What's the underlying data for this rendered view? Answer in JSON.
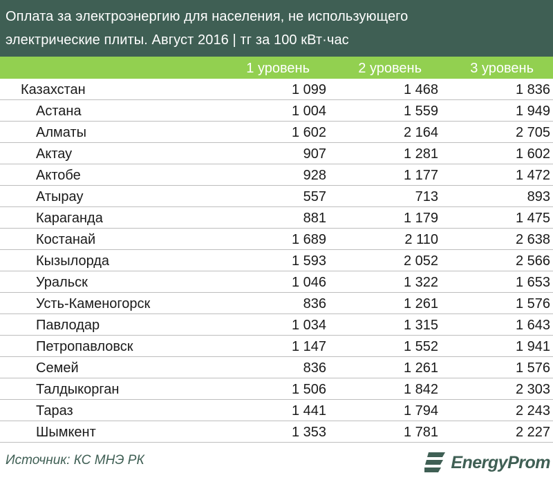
{
  "title": {
    "line1": "Оплата за электроэнергию для населения, не использующего",
    "line2": "электрические плиты. Август 2016 | тг за 100 кВт·час"
  },
  "columns": [
    "1 уровень",
    "2 уровень",
    "3 уровень"
  ],
  "rows": [
    {
      "name": "Казахстан",
      "v1": "1 099",
      "v2": "1 468",
      "v3": "1 836"
    },
    {
      "name": "Астана",
      "v1": "1 004",
      "v2": "1 559",
      "v3": "1 949"
    },
    {
      "name": "Алматы",
      "v1": "1 602",
      "v2": "2 164",
      "v3": "2 705"
    },
    {
      "name": "Актау",
      "v1": "907",
      "v2": "1 281",
      "v3": "1 602"
    },
    {
      "name": "Актобе",
      "v1": "928",
      "v2": "1 177",
      "v3": "1 472"
    },
    {
      "name": "Атырау",
      "v1": "557",
      "v2": "713",
      "v3": "893"
    },
    {
      "name": "Караганда",
      "v1": "881",
      "v2": "1 179",
      "v3": "1 475"
    },
    {
      "name": "Костанай",
      "v1": "1 689",
      "v2": "2 110",
      "v3": "2 638"
    },
    {
      "name": "Кызылорда",
      "v1": "1 593",
      "v2": "2 052",
      "v3": "2 566"
    },
    {
      "name": "Уральск",
      "v1": "1 046",
      "v2": "1 322",
      "v3": "1 653"
    },
    {
      "name": "Усть-Каменогорск",
      "v1": "836",
      "v2": "1 261",
      "v3": "1 576"
    },
    {
      "name": "Павлодар",
      "v1": "1 034",
      "v2": "1 315",
      "v3": "1 643"
    },
    {
      "name": "Петропавловск",
      "v1": "1 147",
      "v2": "1 552",
      "v3": "1 941"
    },
    {
      "name": "Семей",
      "v1": "836",
      "v2": "1 261",
      "v3": "1 576"
    },
    {
      "name": "Талдыкорган",
      "v1": "1 506",
      "v2": "1 842",
      "v3": "2 303"
    },
    {
      "name": "Тараз",
      "v1": "1 441",
      "v2": "1 794",
      "v3": "2 243"
    },
    {
      "name": "Шымкент",
      "v1": "1 353",
      "v2": "1 781",
      "v3": "2 227"
    }
  ],
  "footer": {
    "source": "Источник: КС МНЭ РК",
    "logo_text": "EnergyProm"
  },
  "colors": {
    "title_bg": "#3f5f54",
    "header_bg": "#92d050",
    "divider": "#bdbdbd"
  },
  "icons": {
    "logo": "energyprom-logo-icon"
  }
}
